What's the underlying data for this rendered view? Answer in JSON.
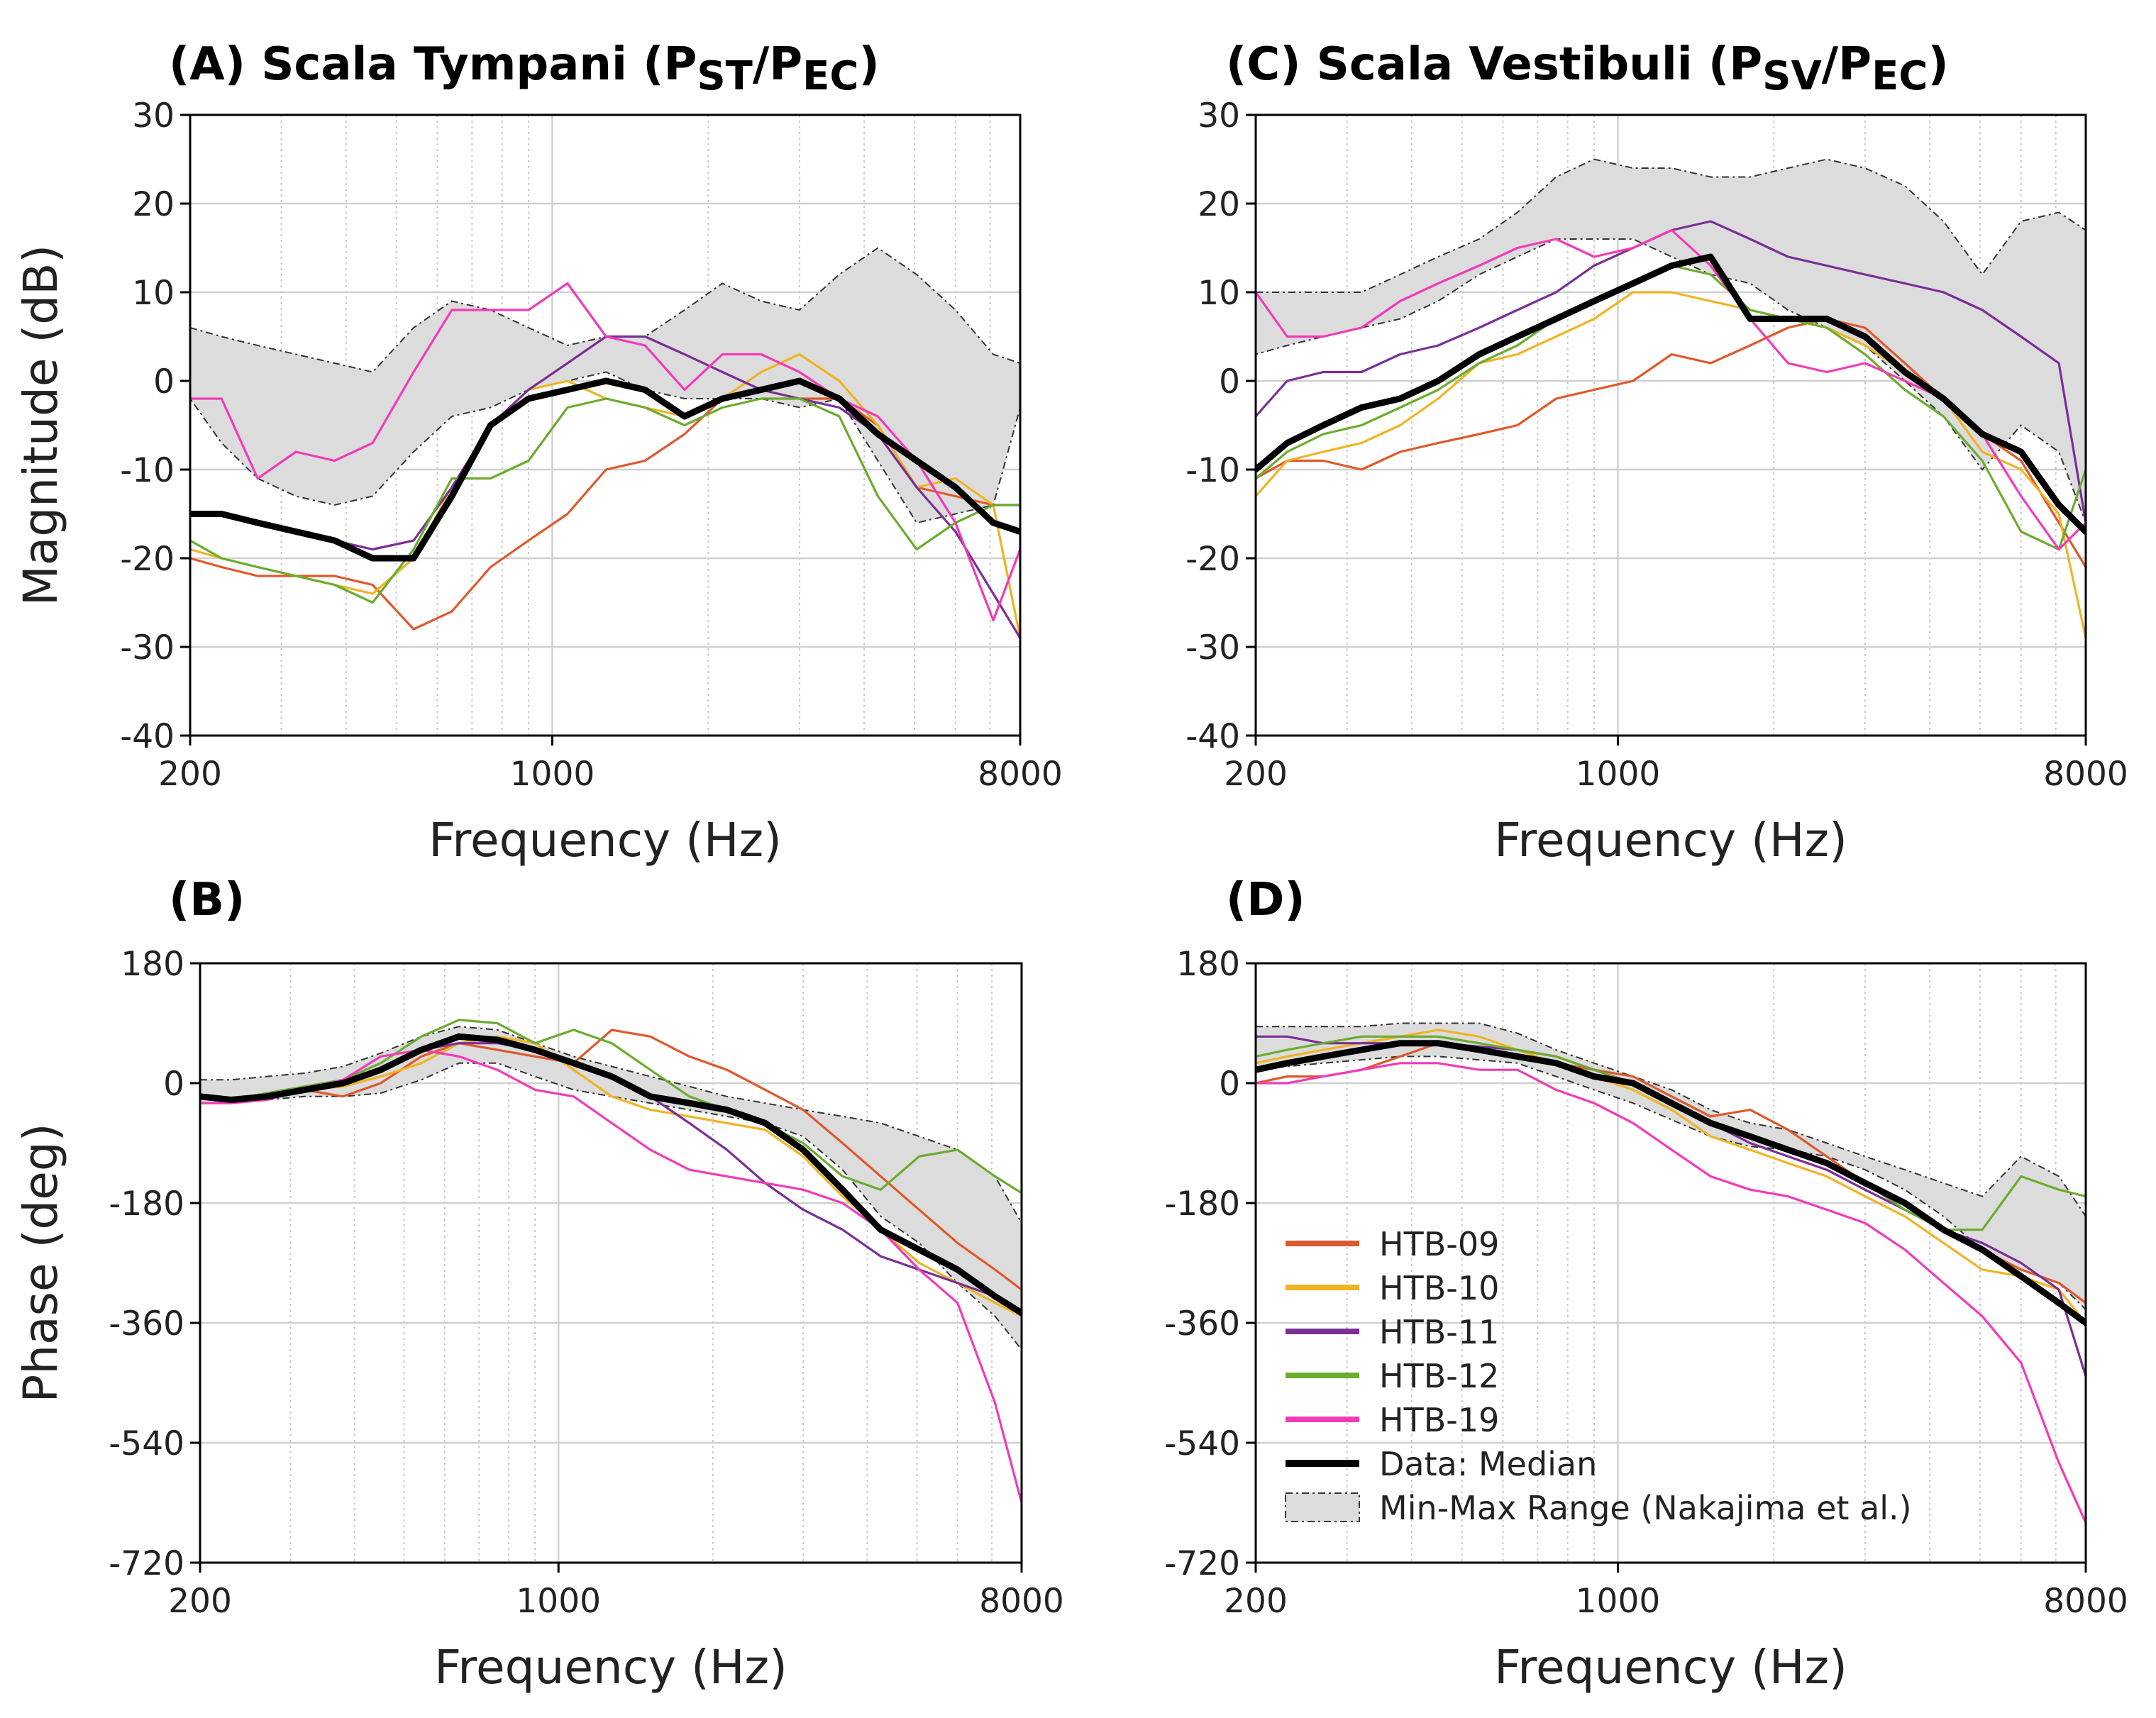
{
  "colors": {
    "HTB-09": "#e0582a",
    "HTB-10": "#f0b323",
    "HTB-11": "#7a2e96",
    "HTB-12": "#6aac2e",
    "HTB-19": "#f23ab8",
    "median": "#000000",
    "range_fill": "#dcdcdc",
    "range_edge": "#333333"
  },
  "legend": [
    {
      "key": "HTB-09",
      "label": "HTB-09",
      "kind": "line"
    },
    {
      "key": "HTB-10",
      "label": "HTB-10",
      "kind": "line"
    },
    {
      "key": "HTB-11",
      "label": "HTB-11",
      "kind": "line"
    },
    {
      "key": "HTB-12",
      "label": "HTB-12",
      "kind": "line"
    },
    {
      "key": "HTB-19",
      "label": "HTB-19",
      "kind": "line"
    },
    {
      "key": "median",
      "label": "Data: Median",
      "kind": "thick"
    },
    {
      "key": "range",
      "label": "Min-Max Range (Nakajima et al.)",
      "kind": "patch"
    }
  ],
  "chart_data": [
    {
      "id": "A",
      "type": "line",
      "title_main": "(A) Scala Tympani (P",
      "title_sub1": "ST",
      "title_mid": "/P",
      "title_sub2": "EC",
      "title_end": ")",
      "xlabel": "Frequency (Hz)",
      "ylabel": "Magnitude (dB)",
      "xscale": "log",
      "xlim": [
        200,
        8000
      ],
      "xticks": [
        200,
        1000,
        8000
      ],
      "xtick_labels": [
        "200",
        "1000",
        "8000"
      ],
      "ylim": [
        -40,
        30
      ],
      "yticks": [
        30,
        20,
        10,
        0,
        -10,
        -20,
        -30,
        -40
      ],
      "ytick_labels": [
        "30",
        "20",
        "10",
        "0",
        "-10",
        "-20",
        "-30",
        "-40"
      ],
      "grid": true,
      "x": [
        200,
        230,
        270,
        320,
        380,
        450,
        540,
        640,
        760,
        900,
        1070,
        1270,
        1510,
        1800,
        2130,
        2530,
        3000,
        3580,
        4250,
        5050,
        6000,
        7100,
        8000
      ],
      "range": {
        "max": [
          6,
          5,
          4,
          3,
          2,
          1,
          6,
          9,
          8,
          6,
          4,
          5,
          5,
          8,
          11,
          9,
          8,
          12,
          15,
          12,
          8,
          3,
          2
        ],
        "min": [
          -2,
          -7,
          -11,
          -13,
          -14,
          -13,
          -8,
          -4,
          -3,
          -1,
          0,
          1,
          -1,
          -2,
          -2,
          -2,
          -3,
          -2,
          -9,
          -16,
          -15,
          -14,
          -3
        ]
      },
      "series": [
        {
          "name": "HTB-09",
          "values": [
            -20,
            -21,
            -22,
            -22,
            -22,
            -23,
            -28,
            -26,
            -21,
            -18,
            -15,
            -10,
            -9,
            -6,
            -2,
            -1,
            -2,
            -2,
            -5,
            -12,
            -13,
            -14,
            -14
          ]
        },
        {
          "name": "HTB-10",
          "values": [
            -19,
            -20,
            -21,
            -22,
            -23,
            -24,
            -20,
            -12,
            -5,
            -1,
            0,
            -2,
            -3,
            -4,
            -2,
            1,
            3,
            0,
            -5,
            -12,
            -11,
            -14,
            -29
          ]
        },
        {
          "name": "HTB-11",
          "values": [
            -15,
            -15,
            -16,
            -17,
            -18,
            -19,
            -18,
            -12,
            -5,
            -1,
            2,
            5,
            5,
            3,
            1,
            -1,
            -2,
            -3,
            -6,
            -12,
            -17,
            -24,
            -29
          ]
        },
        {
          "name": "HTB-12",
          "values": [
            -18,
            -20,
            -21,
            -22,
            -23,
            -25,
            -19,
            -11,
            -11,
            -9,
            -3,
            -2,
            -3,
            -5,
            -3,
            -2,
            -2,
            -4,
            -13,
            -19,
            -16,
            -14,
            -14
          ]
        },
        {
          "name": "HTB-19",
          "values": [
            -2,
            -2,
            -11,
            -8,
            -9,
            -7,
            1,
            8,
            8,
            8,
            11,
            5,
            4,
            -1,
            3,
            3,
            1,
            -2,
            -4,
            -9,
            -16,
            -27,
            -19
          ]
        },
        {
          "name": "Data: Median",
          "values": [
            -15,
            -15,
            -16,
            -17,
            -18,
            -20,
            -20,
            -13,
            -5,
            -2,
            -1,
            0,
            -1,
            -4,
            -2,
            -1,
            0,
            -2,
            -6,
            -9,
            -12,
            -16,
            -17
          ]
        }
      ]
    },
    {
      "id": "C",
      "type": "line",
      "title_main": "(C) Scala Vestibuli (P",
      "title_sub1": "SV",
      "title_mid": "/P",
      "title_sub2": "EC",
      "title_end": ")",
      "xlabel": "Frequency (Hz)",
      "ylabel": "",
      "xscale": "log",
      "xlim": [
        200,
        8000
      ],
      "xticks": [
        200,
        1000,
        8000
      ],
      "xtick_labels": [
        "200",
        "1000",
        "8000"
      ],
      "ylim": [
        -40,
        30
      ],
      "yticks": [
        30,
        20,
        10,
        0,
        -10,
        -20,
        -30,
        -40
      ],
      "ytick_labels": [
        "30",
        "20",
        "10",
        "0",
        "-10",
        "-20",
        "-30",
        "-40"
      ],
      "grid": true,
      "x": [
        200,
        230,
        270,
        320,
        380,
        450,
        540,
        640,
        760,
        900,
        1070,
        1270,
        1510,
        1800,
        2130,
        2530,
        3000,
        3580,
        4250,
        5050,
        6000,
        7100,
        8000
      ],
      "range": {
        "max": [
          10,
          10,
          10,
          10,
          12,
          14,
          16,
          19,
          23,
          25,
          24,
          24,
          23,
          23,
          24,
          25,
          24,
          22,
          18,
          12,
          18,
          19,
          17
        ],
        "min": [
          3,
          4,
          5,
          6,
          7,
          9,
          12,
          14,
          16,
          16,
          16,
          14,
          12,
          11,
          8,
          6,
          4,
          0,
          -4,
          -10,
          -5,
          -8,
          -16
        ]
      },
      "series": [
        {
          "name": "HTB-09",
          "values": [
            -11,
            -9,
            -9,
            -10,
            -8,
            -7,
            -6,
            -5,
            -2,
            -1,
            0,
            3,
            2,
            4,
            6,
            7,
            6,
            2,
            -2,
            -6,
            -9,
            -16,
            -21
          ]
        },
        {
          "name": "HTB-10",
          "values": [
            -13,
            -9,
            -8,
            -7,
            -5,
            -2,
            2,
            3,
            5,
            7,
            10,
            10,
            9,
            8,
            7,
            6,
            4,
            1,
            -2,
            -8,
            -10,
            -15,
            -29
          ]
        },
        {
          "name": "HTB-11",
          "values": [
            -4,
            0,
            1,
            1,
            3,
            4,
            6,
            8,
            10,
            13,
            15,
            17,
            18,
            16,
            14,
            13,
            12,
            11,
            10,
            8,
            5,
            2,
            -16
          ]
        },
        {
          "name": "HTB-12",
          "values": [
            -11,
            -8,
            -6,
            -5,
            -3,
            -1,
            2,
            4,
            7,
            9,
            11,
            13,
            12,
            8,
            7,
            6,
            3,
            -1,
            -4,
            -9,
            -17,
            -19,
            -10
          ]
        },
        {
          "name": "HTB-19",
          "values": [
            10,
            5,
            5,
            6,
            9,
            11,
            13,
            15,
            16,
            14,
            15,
            17,
            13,
            7,
            2,
            1,
            2,
            0,
            -2,
            -6,
            -13,
            -19,
            -16
          ]
        },
        {
          "name": "Data: Median",
          "values": [
            -10,
            -7,
            -5,
            -3,
            -2,
            0,
            3,
            5,
            7,
            9,
            11,
            13,
            14,
            7,
            7,
            7,
            5,
            1,
            -2,
            -6,
            -8,
            -14,
            -17
          ]
        }
      ]
    },
    {
      "id": "B",
      "type": "line",
      "title_main": "(B)",
      "title_sub1": "",
      "title_mid": "",
      "title_sub2": "",
      "title_end": "",
      "xlabel": "Frequency (Hz)",
      "ylabel": "Phase (deg)",
      "xscale": "log",
      "xlim": [
        200,
        8000
      ],
      "xticks": [
        200,
        1000,
        8000
      ],
      "xtick_labels": [
        "200",
        "1000",
        "8000"
      ],
      "ylim": [
        -720,
        180
      ],
      "yticks": [
        180,
        0,
        -180,
        -360,
        -540,
        -720
      ],
      "ytick_labels": [
        "180",
        "0",
        "-180",
        "-360",
        "-540",
        "-720"
      ],
      "grid": true,
      "x": [
        200,
        230,
        270,
        320,
        380,
        450,
        540,
        640,
        760,
        900,
        1070,
        1270,
        1510,
        1800,
        2130,
        2530,
        3000,
        3580,
        4250,
        5050,
        6000,
        7100,
        8000
      ],
      "range": {
        "max": [
          5,
          5,
          10,
          15,
          25,
          45,
          70,
          85,
          80,
          60,
          40,
          25,
          10,
          -5,
          -20,
          -30,
          -40,
          -50,
          -60,
          -80,
          -100,
          -140,
          -210
        ],
        "min": [
          -30,
          -30,
          -25,
          -20,
          -20,
          -15,
          5,
          30,
          30,
          10,
          -10,
          -20,
          -30,
          -40,
          -50,
          -60,
          -80,
          -130,
          -200,
          -240,
          -300,
          -350,
          -400
        ]
      },
      "series": [
        {
          "name": "HTB-09",
          "values": [
            -30,
            -30,
            -20,
            -10,
            -20,
            0,
            40,
            60,
            50,
            40,
            30,
            80,
            70,
            40,
            20,
            -10,
            -40,
            -90,
            -140,
            -190,
            -240,
            -280,
            -310
          ]
        },
        {
          "name": "HTB-10",
          "values": [
            -20,
            -25,
            -15,
            -10,
            -5,
            10,
            30,
            60,
            70,
            60,
            20,
            -20,
            -40,
            -50,
            -60,
            -70,
            -110,
            -170,
            -220,
            -270,
            -300,
            -330,
            -350
          ]
        },
        {
          "name": "HTB-11",
          "values": [
            -20,
            -25,
            -20,
            -10,
            0,
            20,
            50,
            60,
            60,
            50,
            30,
            10,
            -20,
            -60,
            -100,
            -150,
            -190,
            -220,
            -260,
            -280,
            -300,
            -320,
            -345
          ]
        },
        {
          "name": "HTB-12",
          "values": [
            -20,
            -25,
            -15,
            -5,
            5,
            30,
            70,
            95,
            90,
            60,
            80,
            60,
            20,
            -20,
            -40,
            -60,
            -90,
            -140,
            -160,
            -110,
            -100,
            -140,
            -165
          ]
        },
        {
          "name": "HTB-19",
          "values": [
            -30,
            -30,
            -25,
            -10,
            5,
            40,
            50,
            40,
            20,
            -10,
            -20,
            -60,
            -100,
            -130,
            -140,
            -150,
            -160,
            -180,
            -220,
            -280,
            -330,
            -480,
            -630
          ]
        },
        {
          "name": "Data: Median",
          "values": [
            -20,
            -25,
            -20,
            -10,
            0,
            20,
            50,
            70,
            65,
            50,
            30,
            10,
            -20,
            -30,
            -40,
            -60,
            -100,
            -160,
            -220,
            -250,
            -280,
            -320,
            -345
          ]
        }
      ]
    },
    {
      "id": "D",
      "type": "line",
      "title_main": "(D)",
      "title_sub1": "",
      "title_mid": "",
      "title_sub2": "",
      "title_end": "",
      "xlabel": "Frequency (Hz)",
      "ylabel": "",
      "xscale": "log",
      "xlim": [
        200,
        8000
      ],
      "xticks": [
        200,
        1000,
        8000
      ],
      "xtick_labels": [
        "200",
        "1000",
        "8000"
      ],
      "ylim": [
        -720,
        180
      ],
      "yticks": [
        180,
        0,
        -180,
        -360,
        -540,
        -720
      ],
      "ytick_labels": [
        "180",
        "0",
        "-180",
        "-360",
        "-540",
        "-720"
      ],
      "grid": true,
      "x": [
        200,
        230,
        270,
        320,
        380,
        450,
        540,
        640,
        760,
        900,
        1070,
        1270,
        1510,
        1800,
        2130,
        2530,
        3000,
        3580,
        4250,
        5050,
        6000,
        7100,
        8000
      ],
      "range": {
        "max": [
          85,
          85,
          85,
          85,
          90,
          90,
          90,
          75,
          50,
          30,
          10,
          -10,
          -40,
          -60,
          -70,
          -90,
          -110,
          -130,
          -150,
          -170,
          -110,
          -140,
          -200
        ],
        "min": [
          20,
          25,
          30,
          35,
          40,
          40,
          35,
          30,
          10,
          -10,
          -30,
          -55,
          -80,
          -95,
          -100,
          -110,
          -130,
          -160,
          -200,
          -250,
          -280,
          -300,
          -340
        ]
      },
      "series": [
        {
          "name": "HTB-09",
          "values": [
            0,
            10,
            10,
            20,
            40,
            60,
            50,
            40,
            30,
            20,
            10,
            -20,
            -50,
            -40,
            -70,
            -110,
            -150,
            -180,
            -220,
            -250,
            -280,
            -300,
            -330
          ]
        },
        {
          "name": "HTB-10",
          "values": [
            30,
            40,
            50,
            60,
            70,
            80,
            70,
            50,
            30,
            10,
            -10,
            -40,
            -80,
            -100,
            -120,
            -140,
            -170,
            -200,
            -240,
            -280,
            -290,
            -310,
            -360
          ]
        },
        {
          "name": "HTB-11",
          "values": [
            70,
            70,
            60,
            60,
            60,
            60,
            55,
            50,
            40,
            20,
            0,
            -30,
            -60,
            -90,
            -110,
            -130,
            -160,
            -190,
            -220,
            -240,
            -270,
            -310,
            -440
          ]
        },
        {
          "name": "HTB-12",
          "values": [
            40,
            50,
            60,
            70,
            70,
            70,
            60,
            50,
            40,
            20,
            0,
            -30,
            -60,
            -80,
            -100,
            -120,
            -150,
            -190,
            -220,
            -220,
            -140,
            -160,
            -170
          ]
        },
        {
          "name": "HTB-19",
          "values": [
            0,
            0,
            10,
            20,
            30,
            30,
            20,
            20,
            -10,
            -30,
            -60,
            -100,
            -140,
            -160,
            -170,
            -190,
            -210,
            -250,
            -300,
            -350,
            -420,
            -570,
            -660
          ]
        },
        {
          "name": "Data: Median",
          "values": [
            20,
            30,
            40,
            50,
            60,
            60,
            50,
            40,
            30,
            10,
            0,
            -30,
            -60,
            -80,
            -100,
            -120,
            -150,
            -180,
            -220,
            -250,
            -290,
            -330,
            -360
          ]
        }
      ]
    }
  ]
}
